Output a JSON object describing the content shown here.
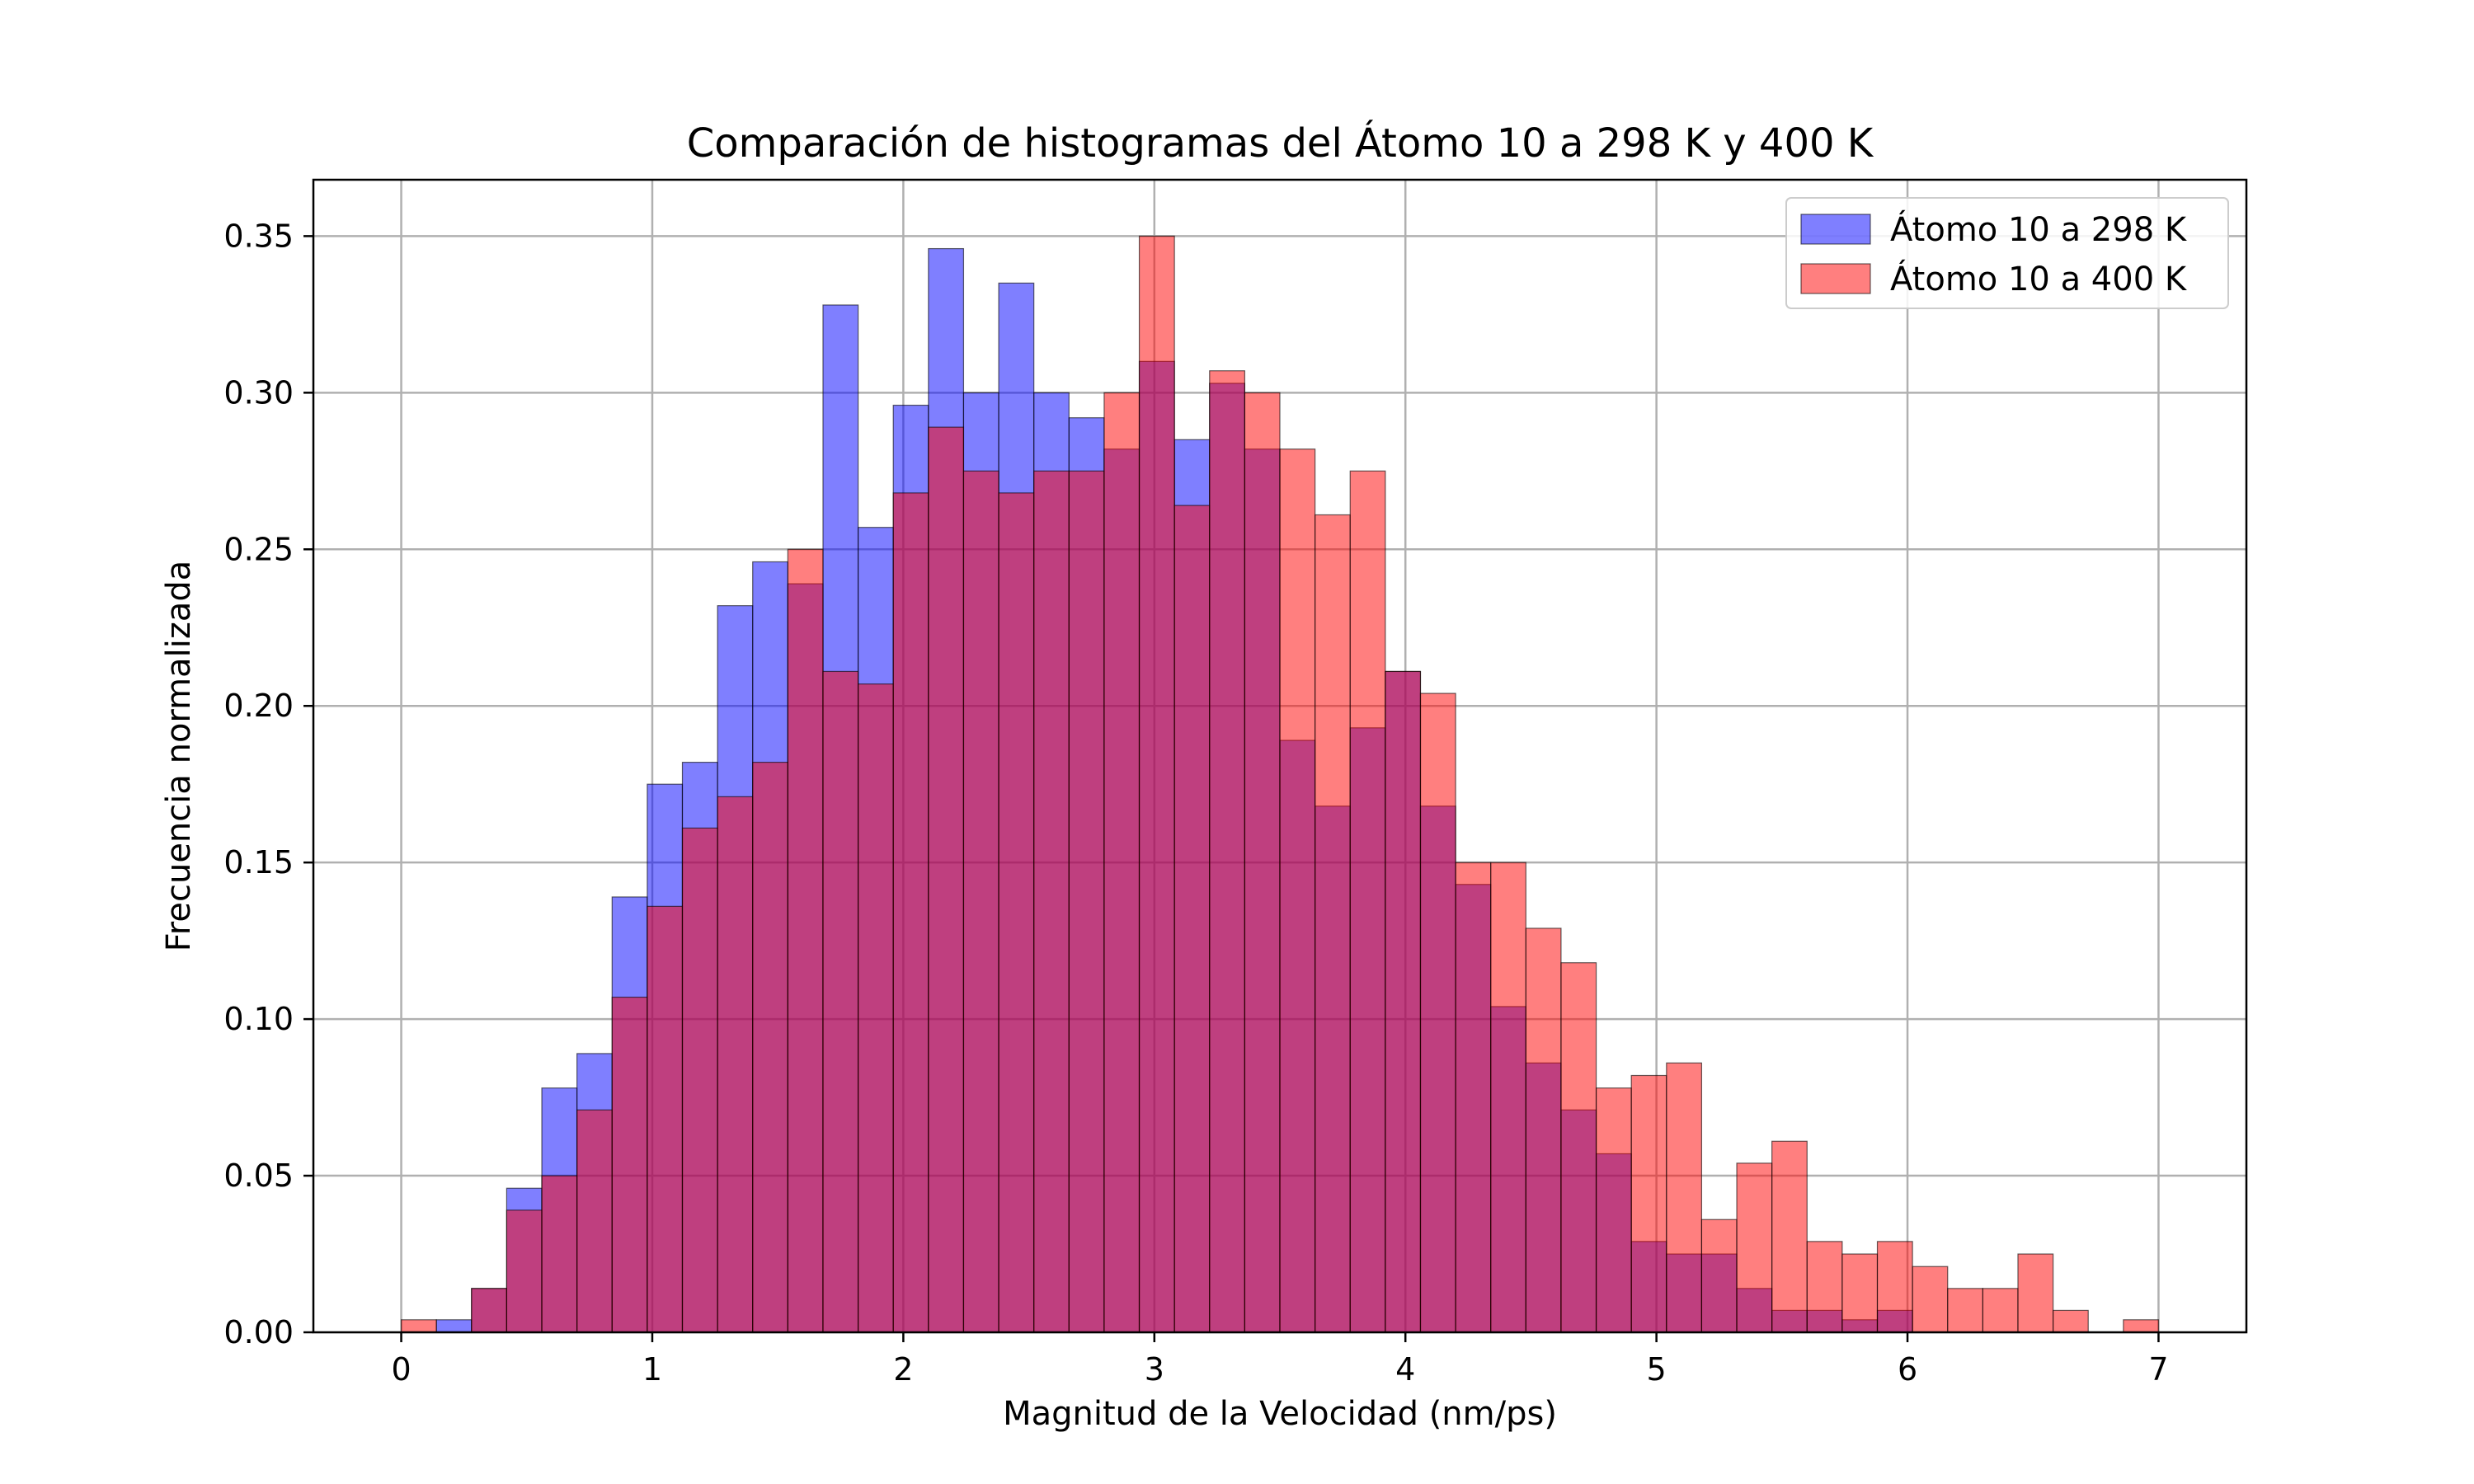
{
  "chart_data": {
    "type": "bar",
    "title": "Comparación de histogramas del Átomo 10 a 298 K y 400 K",
    "xlabel": "Magnitud de la Velocidad (nm/ps)",
    "ylabel": "Frecuencia normalizada",
    "xlim": [
      -0.35,
      7.35
    ],
    "ylim": [
      0,
      0.368
    ],
    "xticks": [
      0,
      1,
      2,
      3,
      4,
      5,
      6,
      7
    ],
    "yticks": [
      0.0,
      0.05,
      0.1,
      0.15,
      0.2,
      0.25,
      0.3,
      0.35
    ],
    "grid": true,
    "legend_position": "top-right",
    "bin_start": 0.0,
    "bin_width": 0.14,
    "series": [
      {
        "name": "Átomo 10 a 298 K",
        "color": "#0000ff",
        "opacity": 0.5,
        "values": [
          0.0,
          0.004,
          0.014,
          0.046,
          0.078,
          0.089,
          0.139,
          0.175,
          0.182,
          0.232,
          0.246,
          0.239,
          0.328,
          0.257,
          0.296,
          0.346,
          0.3,
          0.335,
          0.3,
          0.292,
          0.282,
          0.31,
          0.285,
          0.303,
          0.282,
          0.189,
          0.168,
          0.193,
          0.211,
          0.168,
          0.143,
          0.104,
          0.086,
          0.071,
          0.057,
          0.029,
          0.025,
          0.025,
          0.014,
          0.007,
          0.007,
          0.004,
          0.007,
          0.0,
          0.0,
          0.0,
          0.0,
          0.0,
          0.0,
          0.0
        ]
      },
      {
        "name": "Átomo 10 a 400 K",
        "color": "#ff0000",
        "opacity": 0.5,
        "values": [
          0.004,
          0.0,
          0.014,
          0.039,
          0.05,
          0.071,
          0.107,
          0.136,
          0.161,
          0.171,
          0.182,
          0.25,
          0.211,
          0.207,
          0.268,
          0.289,
          0.275,
          0.268,
          0.275,
          0.275,
          0.3,
          0.35,
          0.264,
          0.307,
          0.3,
          0.282,
          0.261,
          0.275,
          0.211,
          0.204,
          0.15,
          0.15,
          0.129,
          0.118,
          0.078,
          0.082,
          0.086,
          0.036,
          0.054,
          0.061,
          0.029,
          0.025,
          0.029,
          0.021,
          0.014,
          0.014,
          0.025,
          0.007,
          0.0,
          0.004
        ]
      }
    ]
  }
}
